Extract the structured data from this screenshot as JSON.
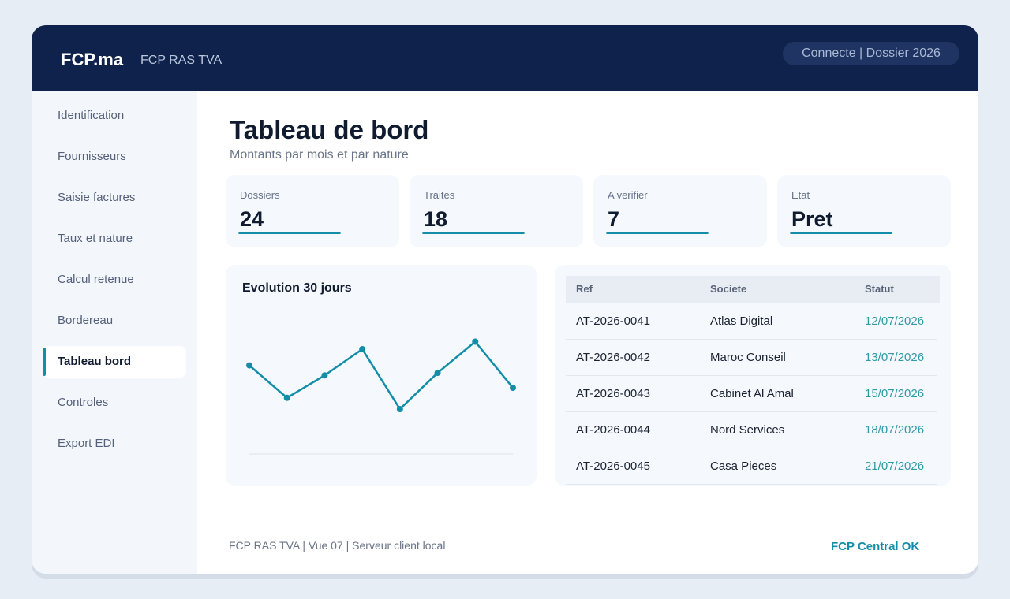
{
  "header": {
    "brand": "FCP.ma",
    "app_name": "FCP RAS TVA",
    "status": "Connecte | Dossier 2026"
  },
  "sidebar": {
    "items": [
      {
        "label": "Identification"
      },
      {
        "label": "Fournisseurs"
      },
      {
        "label": "Saisie factures"
      },
      {
        "label": "Taux et nature"
      },
      {
        "label": "Calcul retenue"
      },
      {
        "label": "Bordereau"
      },
      {
        "label": "Tableau bord",
        "active": true
      },
      {
        "label": "Controles"
      },
      {
        "label": "Export EDI"
      }
    ]
  },
  "main": {
    "title": "Tableau de bord",
    "subtitle": "Montants par mois et par nature",
    "kpis": [
      {
        "label": "Dossiers",
        "value": "24"
      },
      {
        "label": "Traites",
        "value": "18"
      },
      {
        "label": "A verifier",
        "value": "7"
      },
      {
        "label": "Etat",
        "value": "Pret"
      }
    ]
  },
  "chart": {
    "title": "Evolution 30 jours",
    "color": "#148ea8"
  },
  "chart_data": {
    "type": "line",
    "title": "Evolution 30 jours",
    "x": [
      1,
      2,
      3,
      4,
      5,
      6,
      7,
      8
    ],
    "values": [
      71,
      45,
      63,
      84,
      36,
      65,
      90,
      53
    ],
    "ylim": [
      0,
      120
    ],
    "grid": false,
    "legend": "none"
  },
  "table": {
    "headers": {
      "ref": "Ref",
      "societe": "Societe",
      "statut": "Statut"
    },
    "rows": [
      {
        "ref": "AT-2026-0041",
        "societe": "Atlas Digital",
        "statut": "12/07/2026"
      },
      {
        "ref": "AT-2026-0042",
        "societe": "Maroc Conseil",
        "statut": "13/07/2026"
      },
      {
        "ref": "AT-2026-0043",
        "societe": "Cabinet Al Amal",
        "statut": "15/07/2026"
      },
      {
        "ref": "AT-2026-0044",
        "societe": "Nord Services",
        "statut": "18/07/2026"
      },
      {
        "ref": "AT-2026-0045",
        "societe": "Casa Pieces",
        "statut": "21/07/2026"
      }
    ]
  },
  "footer": {
    "text": "FCP RAS TVA | Vue 07 | Serveur client local",
    "status": "FCP Central OK"
  }
}
